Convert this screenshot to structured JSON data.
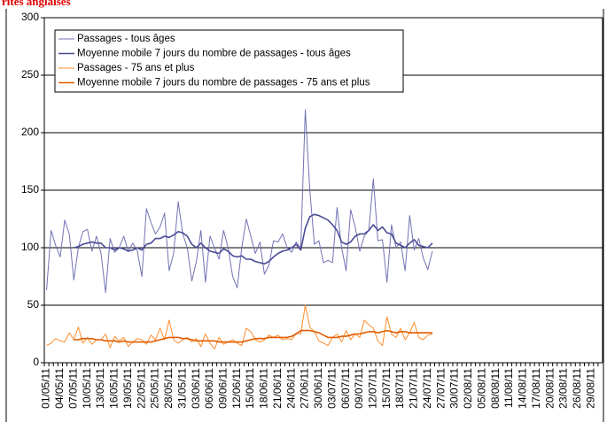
{
  "chart_data": {
    "type": "line",
    "title": "rites anglaises",
    "categories": [
      "01/05/11",
      null,
      null,
      "04/05/11",
      null,
      null,
      "07/05/11",
      null,
      null,
      "10/05/11",
      null,
      null,
      "13/05/11",
      null,
      null,
      "16/05/11",
      null,
      null,
      "19/05/11",
      null,
      null,
      "22/05/11",
      null,
      null,
      "25/05/11",
      null,
      null,
      "28/05/11",
      null,
      null,
      "31/05/11",
      null,
      null,
      "03/06/11",
      null,
      null,
      "06/06/11",
      null,
      null,
      "09/06/11",
      null,
      null,
      "12/06/11",
      null,
      null,
      "15/06/11",
      null,
      null,
      "18/06/11",
      null,
      null,
      "21/06/11",
      null,
      null,
      "24/06/11",
      null,
      null,
      "27/06/11",
      null,
      null,
      "30/06/11",
      null,
      null,
      "03/07/11",
      null,
      null,
      "06/07/11",
      null,
      null,
      "09/07/11",
      null,
      null,
      "12/07/11",
      null,
      null,
      "15/07/11",
      null,
      null,
      "18/07/11",
      null,
      null,
      "21/07/11",
      null,
      null,
      "24/07/11",
      null,
      null,
      "27/07/11",
      null,
      null,
      "30/07/11",
      null,
      null,
      "02/08/11",
      null,
      null,
      "05/08/11",
      null,
      null,
      "08/08/11",
      null,
      null,
      "11/08/11",
      null,
      null,
      "14/08/11",
      null,
      null,
      "17/08/11",
      null,
      null,
      "20/08/11",
      null,
      null,
      "23/08/11",
      null,
      null,
      "26/08/11",
      null,
      null,
      "29/08/11",
      null,
      null
    ],
    "series": [
      {
        "name": "Passages - tous âges",
        "color": "#7272b4",
        "values": [
          63,
          115,
          102,
          92,
          124,
          112,
          72,
          100,
          114,
          116,
          97,
          110,
          95,
          61,
          108,
          96,
          100,
          110,
          97,
          104,
          97,
          75,
          134,
          122,
          112,
          118,
          130,
          80,
          95,
          140,
          112,
          100,
          71,
          88,
          115,
          70,
          110,
          100,
          90,
          115,
          100,
          75,
          65,
          100,
          125,
          110,
          95,
          105,
          77,
          85,
          106,
          105,
          112,
          100,
          96,
          105,
          100,
          220,
          150,
          103,
          106,
          87,
          89,
          87,
          135,
          100,
          80,
          133,
          118,
          97,
          110,
          115,
          160,
          106,
          107,
          70,
          120,
          100,
          105,
          80,
          128,
          98,
          108,
          91,
          81,
          97,
          null,
          null,
          null,
          null,
          null,
          null,
          null,
          null,
          null,
          null,
          null,
          null,
          null,
          null,
          null,
          null,
          null,
          null,
          null,
          null,
          null,
          null,
          null,
          null,
          null,
          null,
          null,
          null,
          null,
          null,
          null,
          null,
          null,
          null,
          null,
          null,
          null
        ]
      },
      {
        "name": "Moyenne mobile 7 jours du nombre de passages - tous âges",
        "color": "#4a4a96",
        "values": [
          null,
          null,
          null,
          null,
          null,
          null,
          100,
          101,
          103,
          104,
          105,
          104,
          104,
          100,
          100,
          98,
          100,
          99,
          97,
          98,
          100,
          98,
          103,
          104,
          108,
          108,
          110,
          109,
          111,
          114,
          113,
          110,
          103,
          100,
          104,
          100,
          97,
          96,
          95,
          99,
          97,
          93,
          92,
          93,
          90,
          90,
          88,
          87,
          86,
          88,
          92,
          95,
          97,
          98,
          100,
          103,
          98,
          117,
          127,
          129,
          128,
          126,
          124,
          120,
          115,
          105,
          103,
          105,
          110,
          112,
          112,
          115,
          120,
          115,
          118,
          113,
          112,
          104,
          102,
          100,
          104,
          107,
          102,
          101,
          100,
          104,
          null,
          null,
          null,
          null,
          null,
          null,
          null,
          null,
          null,
          null,
          null,
          null,
          null,
          null,
          null,
          null,
          null,
          null,
          null,
          null,
          null,
          null,
          null,
          null,
          null,
          null,
          null,
          null,
          null,
          null,
          null,
          null,
          null,
          null,
          null,
          null,
          null
        ]
      },
      {
        "name": "Passages - 75 ans et plus",
        "color": "#ff8c2a",
        "values": [
          15,
          17,
          21,
          19,
          18,
          26,
          20,
          31,
          17,
          22,
          16,
          20,
          20,
          25,
          13,
          23,
          19,
          22,
          14,
          18,
          21,
          20,
          16,
          24,
          20,
          30,
          20,
          37,
          20,
          17,
          20,
          22,
          18,
          21,
          14,
          25,
          17,
          12,
          22,
          16,
          18,
          20,
          17,
          15,
          30,
          27,
          20,
          18,
          20,
          24,
          22,
          24,
          20,
          21,
          20,
          26,
          25,
          50,
          31,
          27,
          19,
          17,
          15,
          22,
          25,
          18,
          28,
          20,
          25,
          22,
          37,
          33,
          30,
          19,
          15,
          40,
          25,
          22,
          30,
          20,
          26,
          35,
          22,
          20,
          24,
          25,
          null,
          null,
          null,
          null,
          null,
          null,
          null,
          null,
          null,
          null,
          null,
          null,
          null,
          null,
          null,
          null,
          null,
          null,
          null,
          null,
          null,
          null,
          null,
          null,
          null,
          null,
          null,
          null,
          null,
          null,
          null,
          null,
          null,
          null,
          null,
          null,
          null
        ]
      },
      {
        "name": "Moyenne mobile 7 jours du nombre de passages - 75 ans et plus",
        "color": "#e05c00",
        "values": [
          null,
          null,
          null,
          null,
          null,
          null,
          20,
          20,
          21,
          21,
          21,
          20,
          20,
          19,
          19,
          19,
          18,
          19,
          18,
          18,
          18,
          18,
          18,
          18,
          19,
          20,
          21,
          22,
          22,
          22,
          21,
          21,
          20,
          19,
          19,
          19,
          19,
          19,
          18,
          18,
          18,
          18,
          18,
          18,
          19,
          20,
          21,
          21,
          21,
          22,
          22,
          22,
          22,
          22,
          23,
          25,
          28,
          28,
          28,
          27,
          26,
          24,
          22,
          22,
          22,
          23,
          23,
          24,
          25,
          25,
          26,
          27,
          27,
          26,
          27,
          28,
          27,
          26,
          27,
          27,
          26,
          26,
          26,
          26,
          26,
          26,
          null,
          null,
          null,
          null,
          null,
          null,
          null,
          null,
          null,
          null,
          null,
          null,
          null,
          null,
          null,
          null,
          null,
          null,
          null,
          null,
          null,
          null,
          null,
          null,
          null,
          null,
          null,
          null,
          null,
          null,
          null,
          null,
          null,
          null,
          null,
          null,
          null
        ]
      }
    ],
    "ylim": [
      0,
      300
    ],
    "yticks": [
      0,
      50,
      100,
      150,
      200,
      250,
      300
    ],
    "grid": true,
    "legend": "top-left"
  }
}
